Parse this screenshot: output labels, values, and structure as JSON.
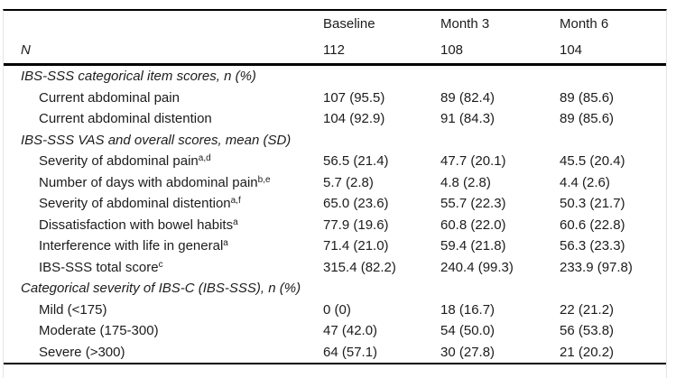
{
  "table": {
    "columns": [
      "",
      "Baseline",
      "Month 3",
      "Month 6"
    ],
    "n_row": {
      "label": "N",
      "values": [
        "112",
        "108",
        "104"
      ]
    },
    "sections": [
      {
        "header": "IBS-SSS categorical item scores, n (%)",
        "rows": [
          {
            "label": "Current abdominal pain",
            "sup": "",
            "values": [
              "107 (95.5)",
              "89 (82.4)",
              "89 (85.6)"
            ]
          },
          {
            "label": "Current abdominal distention",
            "sup": "",
            "values": [
              "104 (92.9)",
              "91 (84.3)",
              "89 (85.6)"
            ]
          }
        ]
      },
      {
        "header": "IBS-SSS VAS and overall scores, mean (SD)",
        "rows": [
          {
            "label": "Severity of abdominal pain",
            "sup": "a,d",
            "values": [
              "56.5 (21.4)",
              "47.7 (20.1)",
              "45.5 (20.4)"
            ]
          },
          {
            "label": "Number of days with abdominal pain",
            "sup": "b,e",
            "values": [
              "5.7 (2.8)",
              "4.8 (2.8)",
              "4.4 (2.6)"
            ]
          },
          {
            "label": "Severity of abdominal distention",
            "sup": "a,f",
            "values": [
              "65.0 (23.6)",
              "55.7 (22.3)",
              "50.3 (21.7)"
            ]
          },
          {
            "label": "Dissatisfaction with bowel habits",
            "sup": "a",
            "values": [
              "77.9 (19.6)",
              "60.8 (22.0)",
              "60.6 (22.8)"
            ]
          },
          {
            "label": "Interference with life in general",
            "sup": "a",
            "values": [
              "71.4 (21.0)",
              "59.4 (21.8)",
              "56.3 (23.3)"
            ]
          },
          {
            "label": "IBS-SSS total score",
            "sup": "c",
            "values": [
              "315.4 (82.2)",
              "240.4 (99.3)",
              "233.9 (97.8)"
            ]
          }
        ]
      },
      {
        "header": "Categorical severity of IBS-C (IBS-SSS), n (%)",
        "rows": [
          {
            "label": "Mild (<175)",
            "sup": "",
            "values": [
              "0 (0)",
              "18 (16.7)",
              "22 (21.2)"
            ]
          },
          {
            "label": "Moderate (175-300)",
            "sup": "",
            "values": [
              "47 (42.0)",
              "54 (50.0)",
              "56 (53.8)"
            ]
          },
          {
            "label": "Severe (>300)",
            "sup": "",
            "values": [
              "64 (57.1)",
              "30 (27.8)",
              "21 (20.2)"
            ]
          }
        ]
      }
    ]
  }
}
